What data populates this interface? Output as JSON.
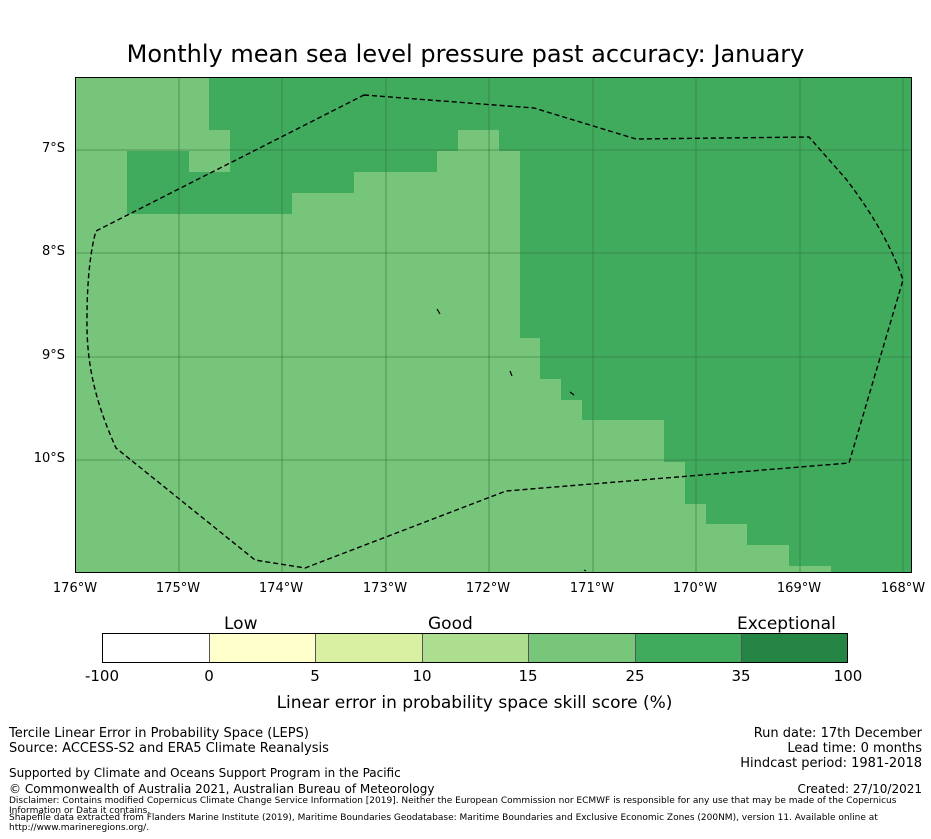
{
  "title": "Monthly mean sea level pressure past accuracy: January",
  "map": {
    "lat_labels": [
      "7°S",
      "8°S",
      "9°S",
      "10°S"
    ],
    "lon_labels": [
      "176°W",
      "175°W",
      "174°W",
      "173°W",
      "172°W",
      "171°W",
      "170°W",
      "169°W",
      "168°W"
    ],
    "colors": {
      "band_15_25": "#77c57a",
      "band_25_35": "#41ab5d",
      "grid": "#2f6e3a",
      "boundary": "#000000"
    }
  },
  "legend": {
    "categories": [
      "Low",
      "Good",
      "Exceptional"
    ],
    "ticks": [
      "-100",
      "0",
      "5",
      "10",
      "15",
      "25",
      "35",
      "100"
    ],
    "colors": [
      "#ffffff",
      "#ffffcc",
      "#d9f0a3",
      "#addd8e",
      "#78c679",
      "#41ab5d",
      "#238443"
    ],
    "label": "Linear error in probability space skill score (%)"
  },
  "footer": {
    "left": [
      "Tercile Linear Error in Probability Space (LEPS)",
      "Source: ACCESS-S2 and ERA5 Climate Reanalysis"
    ],
    "support": "Supported by Climate and Oceans Support Program in the Pacific",
    "copyright": "© Commonwealth of Australia 2021, Australian Bureau of Meteorology",
    "right": [
      "Run date: 17th December",
      "Lead time: 0 months",
      "Hindcast period: 1981-2018"
    ],
    "created": "Created: 27/10/2021",
    "disclaimer": "Disclaimer: Contains modified Copernicus Climate Change Service Information [2019]. Neither the European Commission nor ECMWF is responsible for any use that may be made of the Copernicus Information or Data it contains.",
    "shapefile": "Shapefile data extracted from Flanders Marine Institute (2019), Maritime Boundaries Geodatabase: Maritime Boundaries and Exclusive Economic Zones (200NM), version 11. Available online at http://www.marineregions.org/."
  }
}
